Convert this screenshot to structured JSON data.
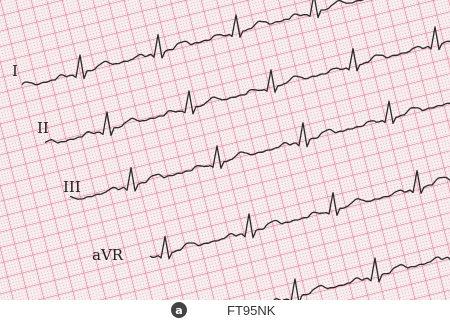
{
  "leads": {
    "lead_1": "I",
    "lead_2": "II",
    "lead_3": "III",
    "lead_4": "aVR"
  },
  "watermark": {
    "logo": "a",
    "image_id": "FT95NK"
  }
}
